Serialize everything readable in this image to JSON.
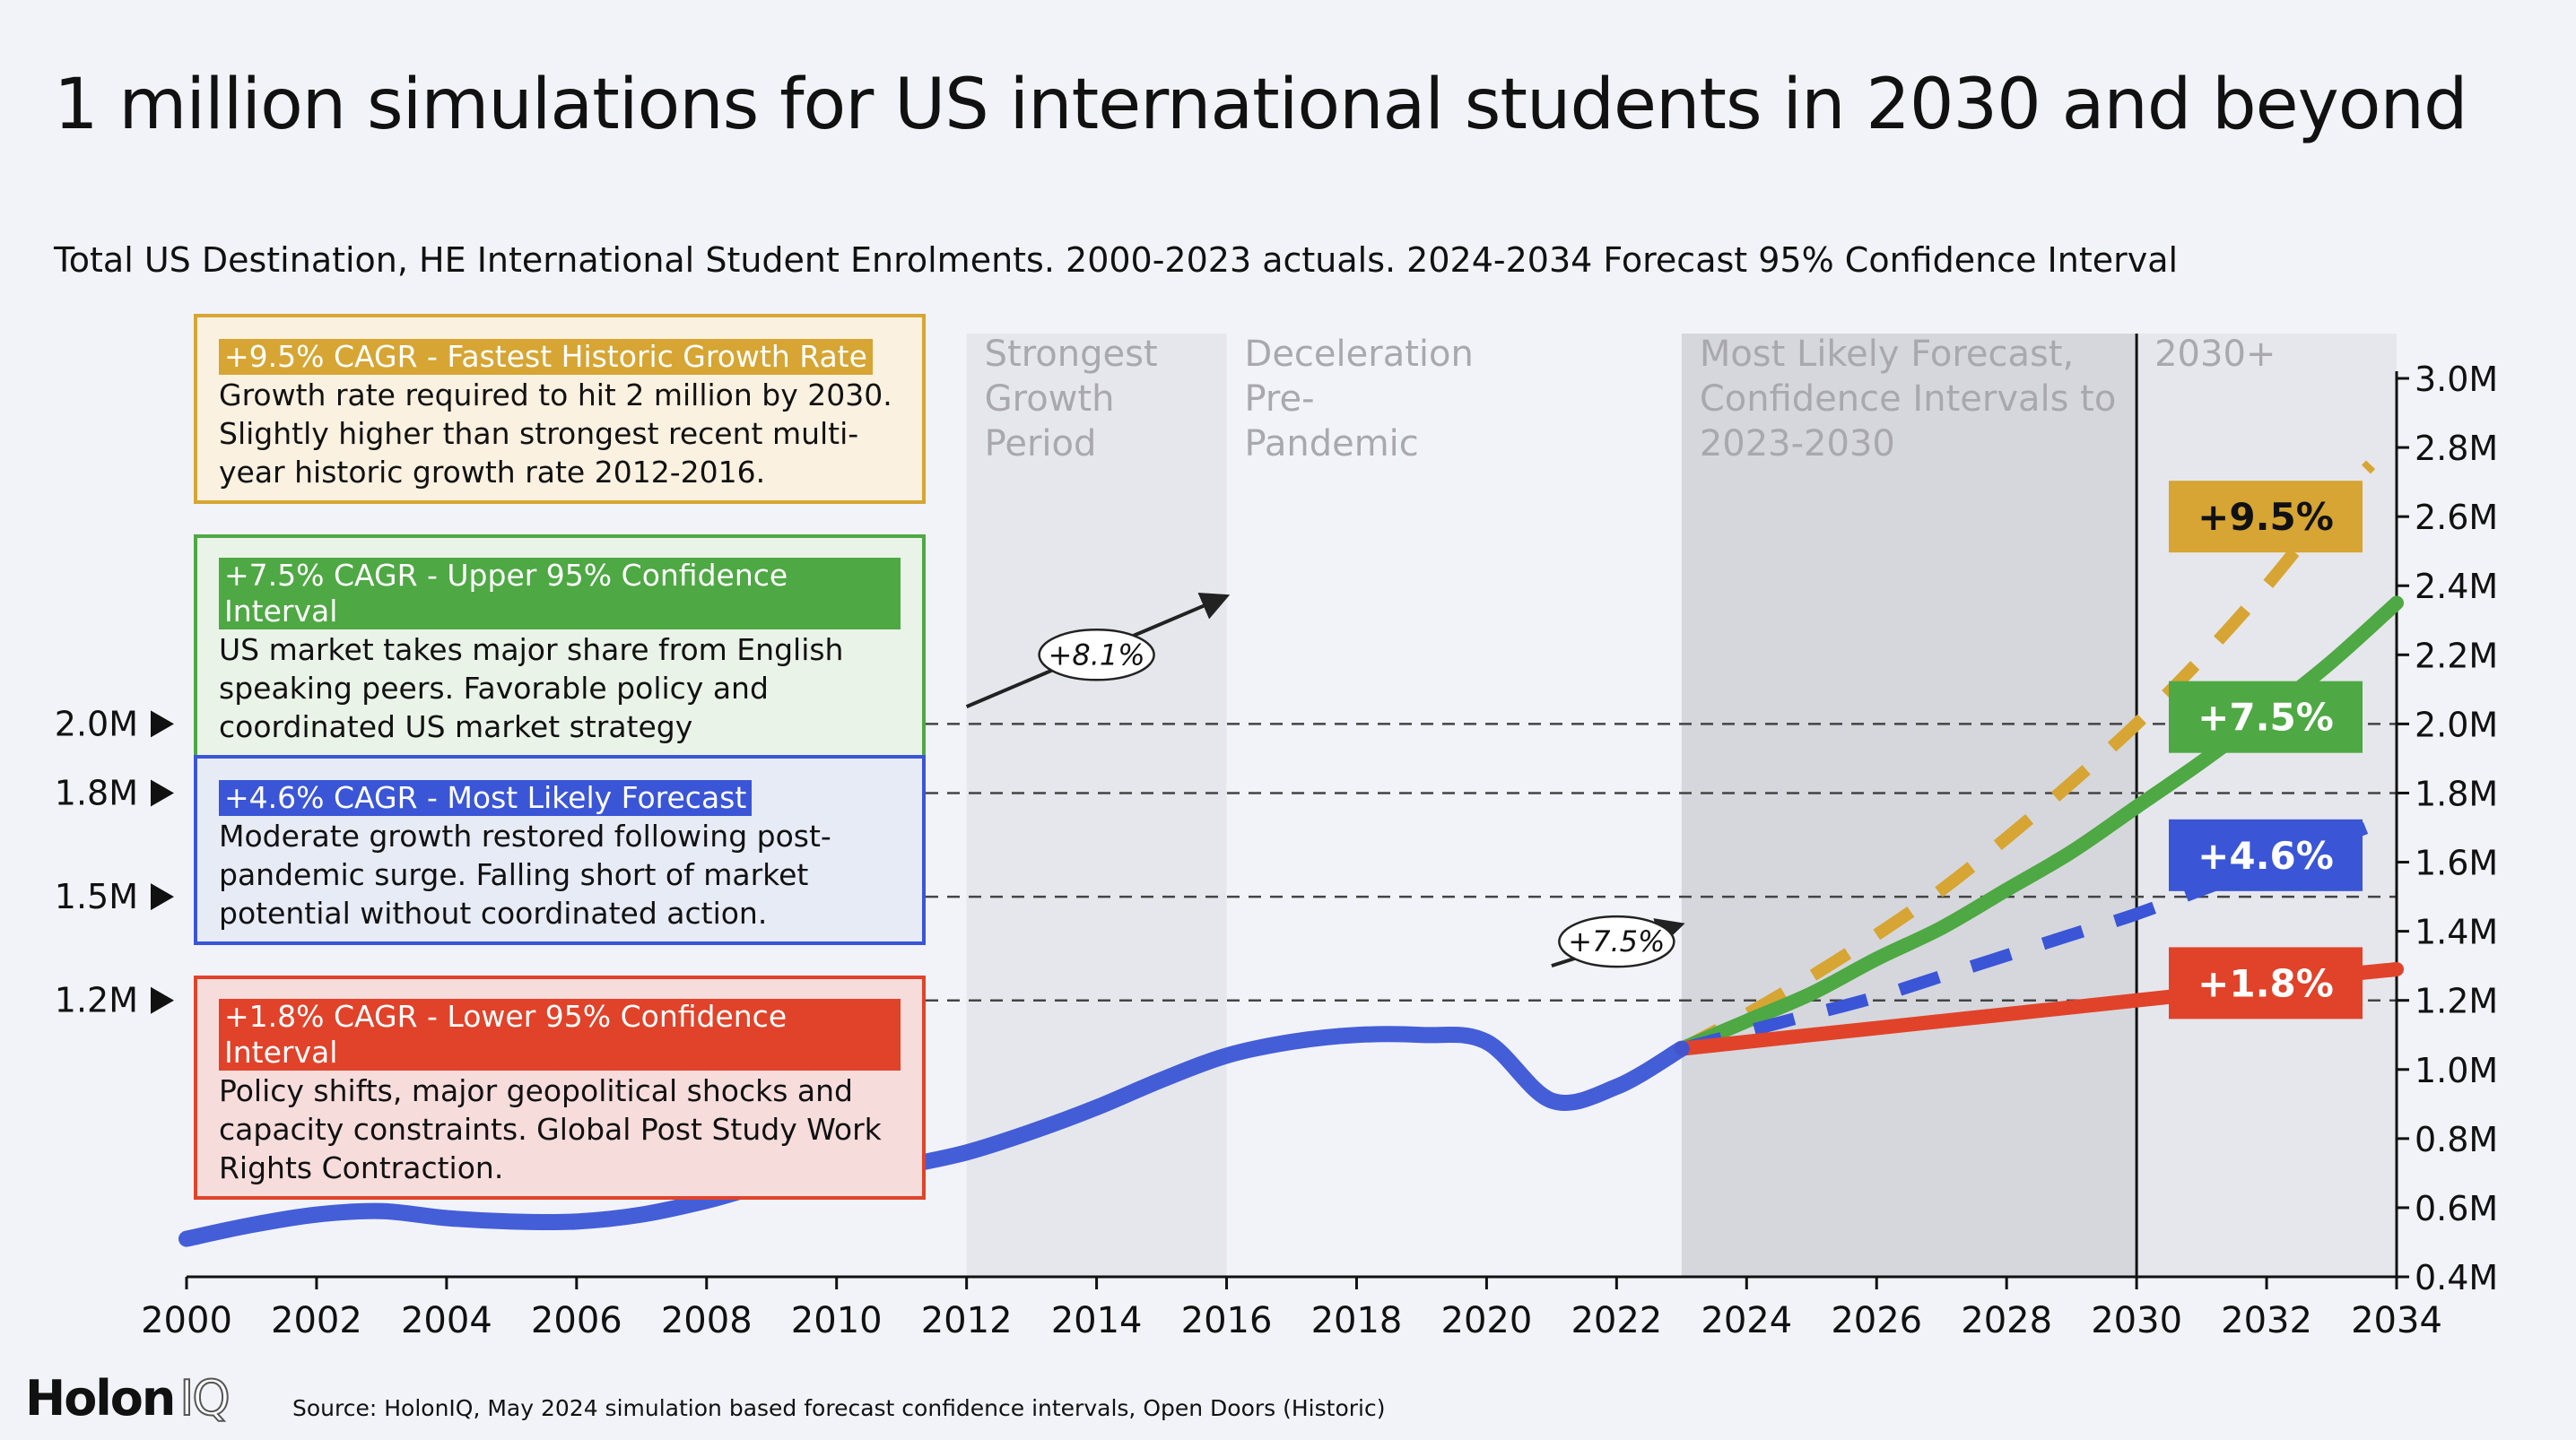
{
  "title": "1 million simulations for US international students in 2030 and beyond",
  "subtitle": "Total US Destination, HE International Student Enrolments. 2000-2023 actuals. 2024-2034 Forecast 95% Confidence Interval",
  "source": "Source: HolonIQ, May 2024 simulation based forecast confidence intervals, Open Doors (Historic)",
  "logo": {
    "main": "Holon",
    "suffix": "IQ"
  },
  "colors": {
    "background": "#f2f3f8",
    "historic": "#3a55d6",
    "gold": "#d6a533",
    "green": "#4ea843",
    "blue": "#3a55d6",
    "red": "#e0432a",
    "period_light": "#e6e7ec",
    "period_dark": "#d6d7dc"
  },
  "callouts": [
    {
      "heading": "+9.5% CAGR - Fastest Historic Growth Rate",
      "body": "Growth rate required to hit 2 million by 2030. Slightly higher than strongest recent multi-year historic growth rate 2012-2016.",
      "border": "#d6a533",
      "fill": "#fbf1e0",
      "accent": "#d6a533"
    },
    {
      "heading": "+7.5% CAGR - Upper 95% Confidence Interval",
      "body": "US market takes major share from English speaking peers. Favorable policy and coordinated US market strategy",
      "border": "#4ea843",
      "fill": "#eaf3e8",
      "accent": "#4ea843"
    },
    {
      "heading": "+4.6% CAGR - Most Likely Forecast",
      "body": "Moderate growth restored following post-pandemic surge. Falling short of market potential without coordinated action.",
      "border": "#3a55d6",
      "fill": "#e7ebf6",
      "accent": "#3a55d6"
    },
    {
      "heading": "+1.8% CAGR - Lower 95% Confidence Interval",
      "body": "Policy shifts, major geopolitical shocks and capacity constraints. Global Post Study Work Rights Contraction.",
      "border": "#e0432a",
      "fill": "#f7dcdc",
      "accent": "#e0432a"
    }
  ],
  "chart_data": {
    "type": "line",
    "xlim": [
      2000,
      2034
    ],
    "ylim": [
      0.4,
      3.0
    ],
    "x_ticks": [
      "2000",
      "2002",
      "2004",
      "2006",
      "2008",
      "2010",
      "2012",
      "2014",
      "2016",
      "2018",
      "2020",
      "2022",
      "2024",
      "2026",
      "2028",
      "2030",
      "2032",
      "2034"
    ],
    "y_ticks": [
      "0.4M",
      "0.6M",
      "0.8M",
      "1.0M",
      "1.2M",
      "1.4M",
      "1.6M",
      "1.8M",
      "2.0M",
      "2.2M",
      "2.4M",
      "2.6M",
      "2.8M",
      "3.0M"
    ],
    "periods": [
      {
        "label": "Strongest Growth Period",
        "lines": [
          "Strongest",
          "Growth",
          "Period"
        ],
        "start": 2012,
        "end": 2016,
        "shade": "light"
      },
      {
        "label": "Deceleration Pre-Pandemic",
        "lines": [
          "Deceleration",
          "Pre-",
          "Pandemic"
        ],
        "start": 2016,
        "end": 2023,
        "shade": "none"
      },
      {
        "label": "Most Likely Forecast, Confidence Intervals to 2023-2030",
        "lines": [
          "Most Likely Forecast,",
          "Confidence Intervals to",
          "2023-2030"
        ],
        "start": 2023,
        "end": 2030,
        "shade": "dark"
      },
      {
        "label": "2030+",
        "lines": [
          "2030+"
        ],
        "start": 2030,
        "end": 2034,
        "shade": "light"
      }
    ],
    "reference_lines": [
      {
        "label": "2.0M",
        "value": 2.0
      },
      {
        "label": "1.8M",
        "value": 1.8
      },
      {
        "label": "1.5M",
        "value": 1.5
      },
      {
        "label": "1.2M",
        "value": 1.2
      }
    ],
    "historic": {
      "name": "Actuals",
      "x": [
        2000,
        2001,
        2002,
        2003,
        2004,
        2005,
        2006,
        2007,
        2008,
        2009,
        2010,
        2011,
        2012,
        2013,
        2014,
        2015,
        2016,
        2017,
        2018,
        2019,
        2020,
        2021,
        2022,
        2023
      ],
      "y": [
        0.51,
        0.55,
        0.58,
        0.59,
        0.57,
        0.56,
        0.56,
        0.58,
        0.62,
        0.67,
        0.69,
        0.72,
        0.76,
        0.82,
        0.89,
        0.97,
        1.04,
        1.08,
        1.1,
        1.1,
        1.08,
        0.91,
        0.95,
        1.06
      ]
    },
    "series": [
      {
        "name": "+9.5%",
        "cagr": 9.5,
        "color": "#d6a533",
        "dash": true,
        "x": [
          2023,
          2024,
          2025,
          2026,
          2027,
          2028,
          2029,
          2030,
          2031,
          2032,
          2033,
          2033.6
        ],
        "y": [
          1.06,
          1.16,
          1.27,
          1.39,
          1.52,
          1.67,
          1.83,
          2.0,
          2.19,
          2.4,
          2.63,
          2.75
        ]
      },
      {
        "name": "+7.5%",
        "cagr": 7.5,
        "color": "#4ea843",
        "dash": false,
        "x": [
          2023,
          2024,
          2025,
          2026,
          2027,
          2028,
          2029,
          2030,
          2031,
          2032,
          2033,
          2034
        ],
        "y": [
          1.06,
          1.14,
          1.22,
          1.32,
          1.41,
          1.52,
          1.63,
          1.76,
          1.89,
          2.03,
          2.18,
          2.35
        ]
      },
      {
        "name": "+4.6%",
        "cagr": 4.6,
        "color": "#3a55d6",
        "dash": true,
        "x": [
          2023,
          2024,
          2025,
          2026,
          2027,
          2028,
          2029,
          2030,
          2031,
          2032,
          2033,
          2033.8
        ],
        "y": [
          1.06,
          1.11,
          1.16,
          1.21,
          1.27,
          1.33,
          1.39,
          1.45,
          1.52,
          1.59,
          1.66,
          1.72
        ]
      },
      {
        "name": "+1.8%",
        "cagr": 1.8,
        "color": "#e0432a",
        "dash": false,
        "x": [
          2023,
          2024,
          2025,
          2026,
          2027,
          2028,
          2029,
          2030,
          2031,
          2032,
          2033,
          2034
        ],
        "y": [
          1.06,
          1.08,
          1.1,
          1.12,
          1.14,
          1.16,
          1.18,
          1.2,
          1.22,
          1.24,
          1.27,
          1.29
        ]
      }
    ],
    "badges": [
      {
        "label": "+9.5%",
        "y": 2.6,
        "color": "#d6a533",
        "text_color": "#111"
      },
      {
        "label": "+7.5%",
        "y": 2.02,
        "color": "#4ea843",
        "text_color": "#fff"
      },
      {
        "label": "+4.6%",
        "y": 1.62,
        "color": "#3a55d6",
        "text_color": "#fff"
      },
      {
        "label": "+1.8%",
        "y": 1.25,
        "color": "#e0432a",
        "text_color": "#fff"
      }
    ],
    "growth_annotations": [
      {
        "label": "+8.1%",
        "from": [
          2012,
          2.05
        ],
        "to": [
          2016,
          2.37
        ],
        "bubble": [
          2014.0,
          2.2
        ]
      },
      {
        "label": "+7.5%",
        "from": [
          2021,
          1.3
        ],
        "to": [
          2023,
          1.42
        ],
        "bubble": [
          2022.0,
          1.37
        ]
      }
    ],
    "vline": 2030
  }
}
